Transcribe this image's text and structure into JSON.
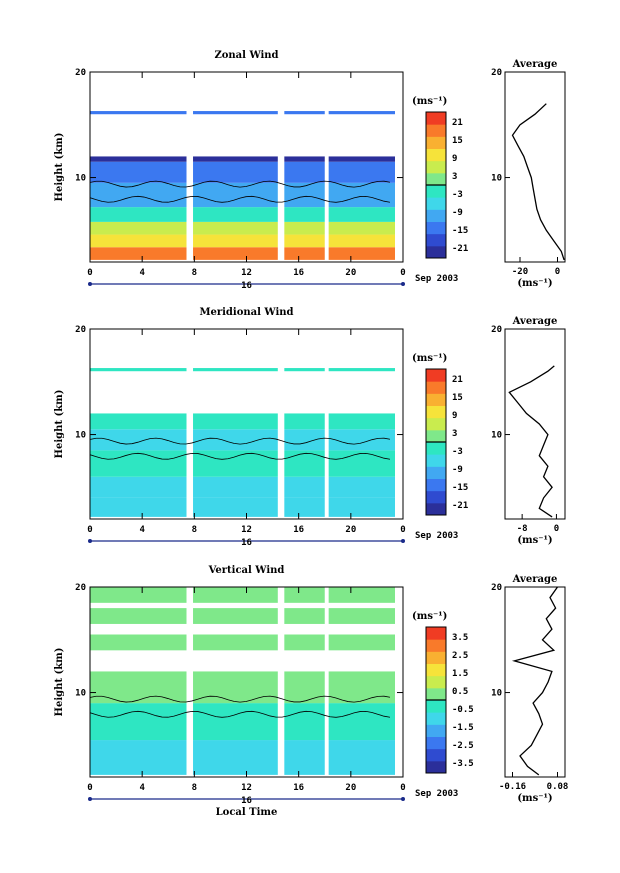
{
  "chart_data": [
    {
      "type": "heatmap",
      "title": "Zonal Wind",
      "ylabel": "Height (km)",
      "ylim": [
        2,
        20
      ],
      "yticks": [
        "10",
        "20"
      ],
      "xticks": [
        "0",
        "4",
        "8",
        "12",
        "16",
        "20",
        "0"
      ],
      "xlim": [
        0,
        24
      ],
      "date_tick": "16",
      "date_caption": "Sep 2003",
      "colorbar": {
        "unit": "(ms⁻¹)",
        "ticks": [
          "21",
          "15",
          "9",
          "3",
          "-3",
          "-9",
          "-15",
          "-21"
        ]
      },
      "palette": [
        "#2b2f9a",
        "#2f4bd0",
        "#3b78f0",
        "#41a8f2",
        "#3fd7ea",
        "#2ee6c2",
        "#7fe88a",
        "#c9ec4e",
        "#f6e33a",
        "#f9b031",
        "#f97a2a",
        "#f03c23"
      ],
      "data_gaps_hours": [
        [
          7.4,
          7.9
        ],
        [
          14.4,
          14.9
        ],
        [
          18.0,
          18.3
        ]
      ],
      "bands": [
        {
          "z0": 2.2,
          "z1": 3.4,
          "value": 15
        },
        {
          "z0": 3.4,
          "z1": 4.6,
          "value": 10
        },
        {
          "z0": 4.6,
          "z1": 5.8,
          "value": 4
        },
        {
          "z0": 5.8,
          "z1": 7.2,
          "value": -3
        },
        {
          "z0": 7.2,
          "z1": 9.5,
          "value": -8
        },
        {
          "z0": 9.5,
          "z1": 11.5,
          "value": -13
        },
        {
          "z0": 11.5,
          "z1": 12.0,
          "value": -18
        },
        {
          "z0": 16.0,
          "z1": 16.3,
          "value": -12
        }
      ],
      "profile": {
        "title": "Average",
        "xlabel": "(ms⁻¹)",
        "xticks": [
          "-20",
          "0"
        ],
        "xlim": [
          -28,
          4
        ],
        "z": [
          2.2,
          3,
          4,
          5,
          6,
          7,
          8,
          9,
          10,
          11,
          12,
          13,
          14,
          15,
          16,
          17
        ],
        "val": [
          3.5,
          2,
          -2,
          -6,
          -9,
          -11,
          -12,
          -13,
          -14,
          -16,
          -18,
          -21,
          -24,
          -20,
          -12,
          -6
        ]
      }
    },
    {
      "type": "heatmap",
      "title": "Meridional Wind",
      "ylabel": "Height (km)",
      "ylim": [
        2,
        20
      ],
      "yticks": [
        "10",
        "20"
      ],
      "xticks": [
        "0",
        "4",
        "8",
        "12",
        "16",
        "20",
        "0"
      ],
      "xlim": [
        0,
        24
      ],
      "date_tick": "16",
      "date_caption": "Sep 2003",
      "colorbar": {
        "unit": "(ms⁻¹)",
        "ticks": [
          "21",
          "15",
          "9",
          "3",
          "-3",
          "-9",
          "-15",
          "-21"
        ]
      },
      "palette": [
        "#2b2f9a",
        "#2f4bd0",
        "#3b78f0",
        "#41a8f2",
        "#3fd7ea",
        "#2ee6c2",
        "#7fe88a",
        "#c9ec4e",
        "#f6e33a",
        "#f9b031",
        "#f97a2a",
        "#f03c23"
      ],
      "data_gaps_hours": [
        [
          7.4,
          7.9
        ],
        [
          14.4,
          14.9
        ],
        [
          18.0,
          18.3
        ]
      ],
      "bands": [
        {
          "z0": 2.2,
          "z1": 4.0,
          "value": -4
        },
        {
          "z0": 4.0,
          "z1": 6.0,
          "value": -6
        },
        {
          "z0": 6.0,
          "z1": 8.5,
          "value": -3
        },
        {
          "z0": 8.5,
          "z1": 10.5,
          "value": -5
        },
        {
          "z0": 10.5,
          "z1": 12.0,
          "value": -2
        },
        {
          "z0": 16.0,
          "z1": 16.3,
          "value": -1
        }
      ],
      "profile": {
        "title": "Average",
        "xlabel": "(ms⁻¹)",
        "xticks": [
          "-8",
          "0"
        ],
        "xlim": [
          -12,
          2
        ],
        "z": [
          2.2,
          3,
          4,
          5,
          6,
          7,
          8,
          9,
          10,
          11,
          12,
          13,
          14,
          15,
          16,
          16.5
        ],
        "val": [
          -1,
          -4,
          -3,
          -1,
          -3,
          -2,
          -4,
          -3,
          -2,
          -4,
          -7,
          -9,
          -11,
          -6,
          -2,
          -0.5
        ]
      }
    },
    {
      "type": "heatmap",
      "title": "Vertical Wind",
      "ylabel": "Height (km)",
      "xlabel": "Local Time",
      "ylim": [
        2,
        20
      ],
      "yticks": [
        "10",
        "20"
      ],
      "xticks": [
        "0",
        "4",
        "8",
        "12",
        "16",
        "20",
        "0"
      ],
      "xlim": [
        0,
        24
      ],
      "date_tick": "16",
      "date_caption": "Sep 2003",
      "colorbar": {
        "unit": "(ms⁻¹)",
        "ticks": [
          "3.5",
          "2.5",
          "1.5",
          "0.5",
          "-0.5",
          "-1.5",
          "-2.5",
          "-3.5"
        ]
      },
      "palette": [
        "#2b2f9a",
        "#2f4bd0",
        "#3b78f0",
        "#41a8f2",
        "#3fd7ea",
        "#2ee6c2",
        "#7fe88a",
        "#c9ec4e",
        "#f6e33a",
        "#f9b031",
        "#f97a2a",
        "#f03c23"
      ],
      "data_gaps_hours": [
        [
          7.4,
          7.9
        ],
        [
          14.4,
          14.9
        ],
        [
          18.0,
          18.3
        ]
      ],
      "bands": [
        {
          "z0": 2.2,
          "z1": 5.5,
          "value": -0.6
        },
        {
          "z0": 5.5,
          "z1": 9.0,
          "value": -0.2
        },
        {
          "z0": 9.0,
          "z1": 12.0,
          "value": 0.2
        },
        {
          "z0": 14.0,
          "z1": 15.5,
          "value": 0.3
        },
        {
          "z0": 16.5,
          "z1": 18.0,
          "value": 0.2
        },
        {
          "z0": 18.5,
          "z1": 20.0,
          "value": 0.4
        }
      ],
      "profile": {
        "title": "Average",
        "xlabel": "(ms⁻¹)",
        "xticks": [
          "-0.16",
          "0.08"
        ],
        "xlim": [
          -0.2,
          0.12
        ],
        "z": [
          2.2,
          3,
          4,
          5,
          6,
          7,
          8,
          9,
          10,
          11,
          12,
          13,
          14,
          15,
          16,
          17,
          18,
          19,
          20
        ],
        "val": [
          -0.02,
          -0.08,
          -0.12,
          -0.06,
          -0.03,
          0.0,
          -0.02,
          -0.05,
          0.0,
          0.03,
          0.05,
          -0.15,
          0.06,
          0.0,
          0.05,
          0.02,
          0.07,
          0.04,
          0.08
        ]
      }
    }
  ]
}
